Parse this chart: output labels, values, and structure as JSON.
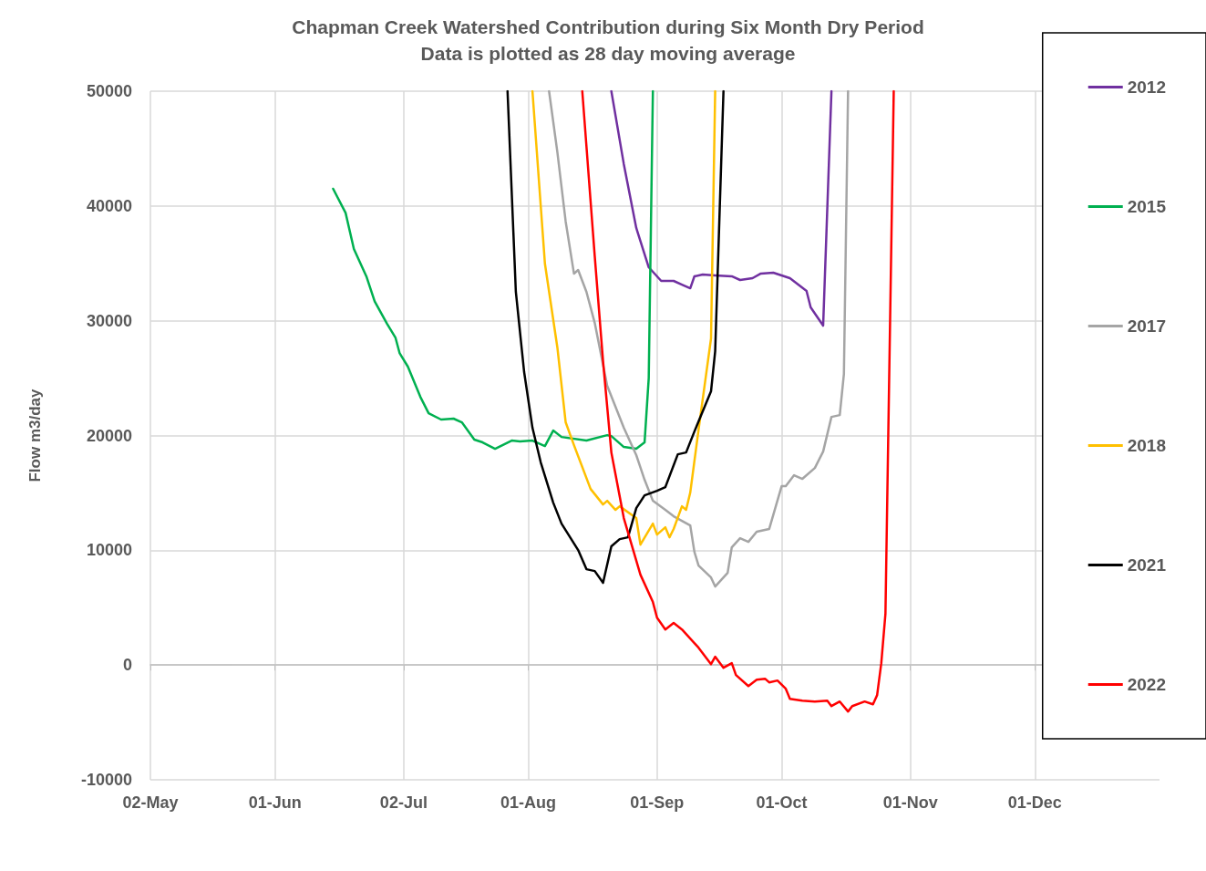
{
  "chart_data": {
    "type": "line",
    "title": "Chapman Creek Watershed Contribution during Six Month Dry Period",
    "subtitle": "Data is plotted as 28 day moving average",
    "ylabel": "Flow m3/day",
    "xlim": [
      "--05-02",
      "--12-31"
    ],
    "xticks": [
      {
        "value": "--05-02",
        "label": "02-May"
      },
      {
        "value": "--06-01",
        "label": "01-Jun"
      },
      {
        "value": "--07-02",
        "label": "02-Jul"
      },
      {
        "value": "--08-01",
        "label": "01-Aug"
      },
      {
        "value": "--09-01",
        "label": "01-Sep"
      },
      {
        "value": "--10-01",
        "label": "01-Oct"
      },
      {
        "value": "--11-01",
        "label": "01-Nov"
      },
      {
        "value": "--12-01",
        "label": "01-Dec"
      }
    ],
    "ylim": [
      -10000,
      50000
    ],
    "yticks": [
      -10000,
      0,
      10000,
      20000,
      30000,
      40000,
      50000
    ],
    "grid": true,
    "legend": "right",
    "marker": "none",
    "line_style": "solid",
    "series": [
      {
        "name": "2012",
        "color": "#7030a0",
        "x": [
          "--08-21",
          "--08-24",
          "--08-27",
          "--08-30",
          "--09-02",
          "--09-05",
          "--09-07",
          "--09-09",
          "--09-10",
          "--09-12",
          "--09-15",
          "--09-19",
          "--09-21",
          "--09-24",
          "--09-26",
          "--09-29",
          "--10-03",
          "--10-07",
          "--10-08",
          "--10-11",
          "--10-13"
        ],
        "values": [
          50000,
          43650,
          38080,
          34660,
          33470,
          33470,
          33150,
          32830,
          33870,
          34030,
          33950,
          33870,
          33550,
          33710,
          34110,
          34190,
          33710,
          32600,
          31160,
          29570,
          50000
        ]
      },
      {
        "name": "2015",
        "color": "#00b050",
        "x": [
          "--06-15",
          "--06-18",
          "--06-20",
          "--06-23",
          "--06-25",
          "--06-28",
          "--06-30",
          "--07-01",
          "--07-03",
          "--07-06",
          "--07-08",
          "--07-11",
          "--07-14",
          "--07-16",
          "--07-19",
          "--07-21",
          "--07-24",
          "--07-28",
          "--07-30",
          "--08-02",
          "--08-05",
          "--08-07",
          "--08-09",
          "--08-15",
          "--08-20",
          "--08-21",
          "--08-24",
          "--08-27",
          "--08-29",
          "--08-30",
          "--08-31"
        ],
        "values": [
          41500,
          39400,
          36250,
          33870,
          31700,
          29730,
          28540,
          27190,
          26000,
          23370,
          21940,
          21390,
          21470,
          21150,
          19640,
          19400,
          18840,
          19560,
          19480,
          19560,
          19080,
          20430,
          19870,
          19560,
          20030,
          19950,
          19000,
          18840,
          19400,
          25000,
          50000
        ]
      },
      {
        "name": "2017",
        "color": "#a5a5a5",
        "x": [
          "--08-06",
          "--08-08",
          "--08-10",
          "--08-12",
          "--08-13",
          "--08-15",
          "--08-17",
          "--08-20",
          "--08-24",
          "--08-27",
          "--08-29",
          "--08-31",
          "--09-03",
          "--09-05",
          "--09-09",
          "--09-10",
          "--09-11",
          "--09-14",
          "--09-15",
          "--09-18",
          "--09-19",
          "--09-21",
          "--09-23",
          "--09-25",
          "--09-28",
          "--10-01",
          "--10-02",
          "--10-04",
          "--10-06",
          "--10-09",
          "--10-11",
          "--10-13",
          "--10-15",
          "--10-16",
          "--10-17"
        ],
        "values": [
          50000,
          44680,
          38640,
          34100,
          34420,
          32520,
          29810,
          24330,
          20670,
          18290,
          16140,
          14310,
          13520,
          12960,
          12160,
          9860,
          8670,
          7630,
          6840,
          8030,
          10260,
          11050,
          10730,
          11610,
          11850,
          15580,
          15580,
          16540,
          16220,
          17170,
          18600,
          21620,
          21780,
          25360,
          50000
        ]
      },
      {
        "name": "2018",
        "color": "#ffc000",
        "x": [
          "--08-02",
          "--08-05",
          "--08-08",
          "--08-10",
          "--08-12",
          "--08-16",
          "--08-19",
          "--08-20",
          "--08-22",
          "--08-23",
          "--08-27",
          "--08-28",
          "--08-31",
          "--09-01",
          "--09-03",
          "--09-04",
          "--09-05",
          "--09-07",
          "--09-08",
          "--09-09",
          "--09-11",
          "--09-14",
          "--09-15"
        ],
        "values": [
          50000,
          34980,
          27670,
          21150,
          19160,
          15340,
          13990,
          14310,
          13520,
          13830,
          12800,
          10490,
          12320,
          11370,
          12000,
          11130,
          11850,
          13830,
          13520,
          15030,
          20510,
          28460,
          50000
        ]
      },
      {
        "name": "2021",
        "color": "#000000",
        "x": [
          "--07-27",
          "--07-29",
          "--07-31",
          "--08-02",
          "--08-04",
          "--08-07",
          "--08-09",
          "--08-13",
          "--08-15",
          "--08-17",
          "--08-19",
          "--08-21",
          "--08-23",
          "--08-25",
          "--08-27",
          "--08-29",
          "--09-01",
          "--09-03",
          "--09-06",
          "--09-08",
          "--09-10",
          "--09-14",
          "--09-15",
          "--09-17"
        ],
        "values": [
          50000,
          32520,
          25520,
          20670,
          17650,
          14150,
          12320,
          10020,
          8350,
          8190,
          7160,
          10340,
          10970,
          11130,
          13670,
          14790,
          15180,
          15500,
          18360,
          18520,
          20350,
          23850,
          27350,
          50000
        ]
      },
      {
        "name": "2022",
        "color": "#ff0000",
        "x": [
          "--08-14",
          "--08-17",
          "--08-19",
          "--08-21",
          "--08-24",
          "--08-28",
          "--08-31",
          "--09-01",
          "--09-03",
          "--09-05",
          "--09-07",
          "--09-11",
          "--09-14",
          "--09-15",
          "--09-17",
          "--09-19",
          "--09-20",
          "--09-23",
          "--09-25",
          "--09-27",
          "--09-28",
          "--09-30",
          "--10-02",
          "--10-03",
          "--10-06",
          "--10-09",
          "--10-12",
          "--10-13",
          "--10-15",
          "--10-17",
          "--10-18",
          "--10-21",
          "--10-23",
          "--10-24",
          "--10-25",
          "--10-26",
          "--10-28"
        ],
        "values": [
          50000,
          35620,
          26470,
          18520,
          12800,
          7870,
          5490,
          4130,
          3100,
          3660,
          3100,
          1510,
          80,
          720,
          -240,
          160,
          -870,
          -1830,
          -1270,
          -1190,
          -1510,
          -1350,
          -2070,
          -2940,
          -3100,
          -3180,
          -3100,
          -3580,
          -3180,
          -4050,
          -3580,
          -3180,
          -3420,
          -2620,
          160,
          4450,
          50000
        ]
      }
    ]
  }
}
